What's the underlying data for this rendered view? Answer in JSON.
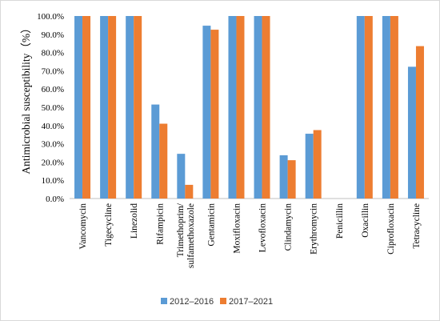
{
  "chart_data": {
    "type": "bar",
    "title": "",
    "xlabel": "",
    "ylabel": "Antimicrobial susceptibility（%）",
    "ylim": [
      0,
      100
    ],
    "yticks": [
      "0.0%",
      "10.0%",
      "20.0%",
      "30.0%",
      "40.0%",
      "50.0%",
      "60.0%",
      "70.0%",
      "80.0%",
      "90.0%",
      "100.0%"
    ],
    "grid": false,
    "legend_position": "bottom",
    "categories": [
      [
        "Vancomycin"
      ],
      [
        "Tigecycline"
      ],
      [
        "Linezolid"
      ],
      [
        "Rifampicin"
      ],
      [
        "Trimethoprim/",
        "sulfamethoxazole"
      ],
      [
        "Gentamicin"
      ],
      [
        "Moxifloxacin"
      ],
      [
        "Levofloxacin"
      ],
      [
        "Clindamycin"
      ],
      [
        "Erythromycin"
      ],
      [
        "Penicillin"
      ],
      [
        "Oxacillin"
      ],
      [
        "Ciprofloxacin"
      ],
      [
        "Tetracycline"
      ]
    ],
    "series": [
      {
        "name": "2012–2016",
        "color": "#5b9bd5",
        "values": [
          100,
          100,
          100,
          51.5,
          24.5,
          94.7,
          100,
          100,
          23.7,
          35.5,
          0,
          100,
          100,
          72.2
        ]
      },
      {
        "name": "2017–2021",
        "color": "#ed7d31",
        "values": [
          100,
          100,
          100,
          41.0,
          7.5,
          92.5,
          100,
          100,
          21.0,
          37.5,
          0,
          100,
          100,
          83.5
        ]
      }
    ]
  }
}
